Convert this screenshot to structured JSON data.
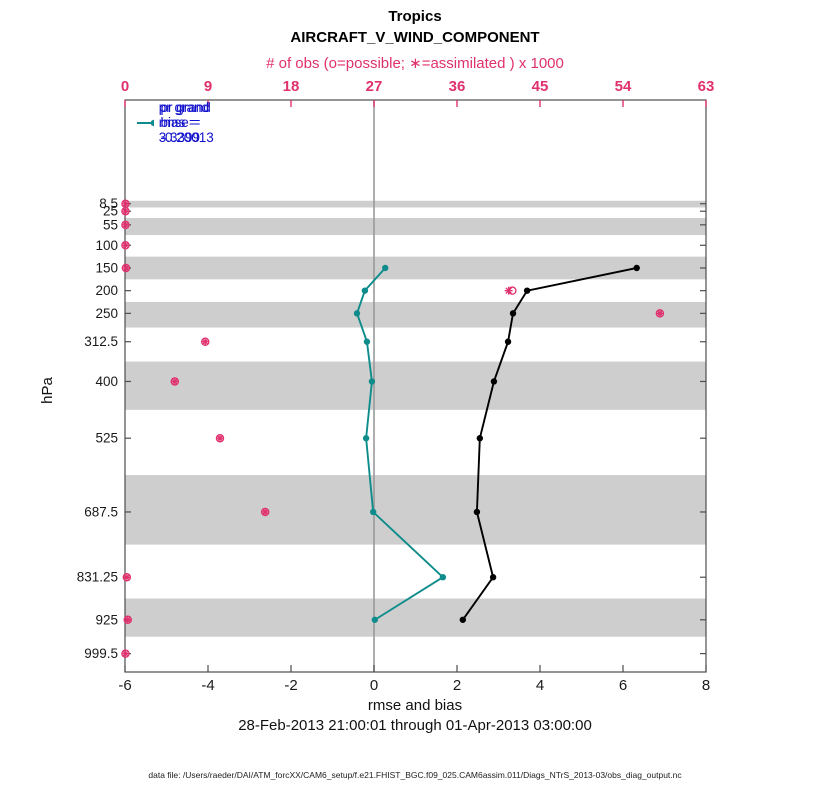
{
  "figure": {
    "region_title": "Tropics",
    "variable_title": "AIRCRAFT_V_WIND_COMPONENT",
    "top_axis_label": "# of obs (o=possible; ∗=assimilated ) x 1000",
    "bottom_axis_label": "rmse and bias",
    "y_axis_label": "hPa",
    "date_range": "28-Feb-2013 21:00:01 through 01-Apr-2013 03:00:00",
    "footer": "data file: /Users/raeder/DAI/ATM_forcXX/CAM6_setup/f.e21.FHIST_BGC.f09_025.CAM6assim.011/Diags_NTrS_2013-03/obs_diag_output.nc"
  },
  "legend": {
    "rmse_label": "pr grand rmse = 3.3399",
    "bias_label": "pr grand bias = -0.20013"
  },
  "colors": {
    "rmse": "#000000",
    "bias": "#0e8c8c",
    "obs": "#e0306e",
    "legend_text": "#1111cc",
    "band": "#cecece",
    "zero_line": "#9a9a9a",
    "axis": "#4d4d4d",
    "tick_text": "#1a1a1a"
  },
  "chart_data": {
    "type": "line",
    "title": "Tropics",
    "subtitle": "AIRCRAFT_V_WIND_COMPONENT",
    "grand_rmse": 3.3399,
    "grand_bias": -0.20013,
    "x_bottom": {
      "label": "rmse and bias",
      "lim": [
        -6,
        8
      ],
      "ticks": [
        -6,
        -4,
        -2,
        0,
        2,
        4,
        6,
        8
      ]
    },
    "x_top": {
      "label": "# of obs (o=possible; ∗=assimilated ) x 1000",
      "lim": [
        0,
        63
      ],
      "ticks": [
        0,
        9,
        18,
        27,
        36,
        45,
        54,
        63
      ]
    },
    "y": {
      "label": "hPa",
      "unit": "hPa",
      "direction": "reversed",
      "lim_top": -220,
      "lim_bottom": 1040,
      "ticks": [
        8.5,
        25,
        55,
        100,
        150,
        200,
        250,
        312.5,
        400,
        525,
        687.5,
        831.25,
        925,
        999.5
      ]
    },
    "series": [
      {
        "name": "pr grand rmse",
        "axis": "bottom",
        "color_key": "rmse",
        "marker": "filled-circle",
        "points": [
          [
            150,
            6.33
          ],
          [
            200,
            3.69
          ],
          [
            250,
            3.35
          ],
          [
            312.5,
            3.23
          ],
          [
            400,
            2.89
          ],
          [
            525,
            2.55
          ],
          [
            687.5,
            2.48
          ],
          [
            831.25,
            2.87
          ],
          [
            925,
            2.14
          ]
        ]
      },
      {
        "name": "pr grand bias",
        "axis": "bottom",
        "color_key": "bias",
        "marker": "filled-circle",
        "points": [
          [
            150,
            0.27
          ],
          [
            200,
            -0.22
          ],
          [
            250,
            -0.41
          ],
          [
            312.5,
            -0.17
          ],
          [
            400,
            -0.05
          ],
          [
            525,
            -0.19
          ],
          [
            687.5,
            -0.02
          ],
          [
            831.25,
            1.66
          ],
          [
            925,
            0.02
          ]
        ]
      }
    ],
    "obs_counts_x1000": {
      "axis": "top",
      "possible": [
        [
          8.5,
          0.05
        ],
        [
          25,
          0.05
        ],
        [
          55,
          0.05
        ],
        [
          100,
          0.05
        ],
        [
          150,
          0.1
        ],
        [
          200,
          42.0
        ],
        [
          250,
          58.0
        ],
        [
          312.5,
          8.7
        ],
        [
          400,
          5.4
        ],
        [
          525,
          10.3
        ],
        [
          687.5,
          15.2
        ],
        [
          831.25,
          0.2
        ],
        [
          925,
          0.3
        ],
        [
          999.5,
          0.05
        ]
      ],
      "assimilated": [
        [
          8.5,
          0.05
        ],
        [
          25,
          0.05
        ],
        [
          55,
          0.05
        ],
        [
          100,
          0.05
        ],
        [
          150,
          0.1
        ],
        [
          200,
          41.6
        ],
        [
          250,
          58.0
        ],
        [
          312.5,
          8.7
        ],
        [
          400,
          5.4
        ],
        [
          525,
          10.3
        ],
        [
          687.5,
          15.2
        ],
        [
          831.25,
          0.2
        ],
        [
          925,
          0.3
        ],
        [
          999.5,
          0.05
        ]
      ]
    },
    "shaded_bands_hpa": [
      [
        2,
        16.75
      ],
      [
        40,
        77.5
      ],
      [
        125,
        175
      ],
      [
        225,
        281.25
      ],
      [
        356.25,
        462.5
      ],
      [
        606.25,
        759.375
      ],
      [
        878.125,
        962.25
      ]
    ],
    "zero_reference_line_x": 0,
    "grid": "off",
    "legend_position": "top-left-inside"
  }
}
